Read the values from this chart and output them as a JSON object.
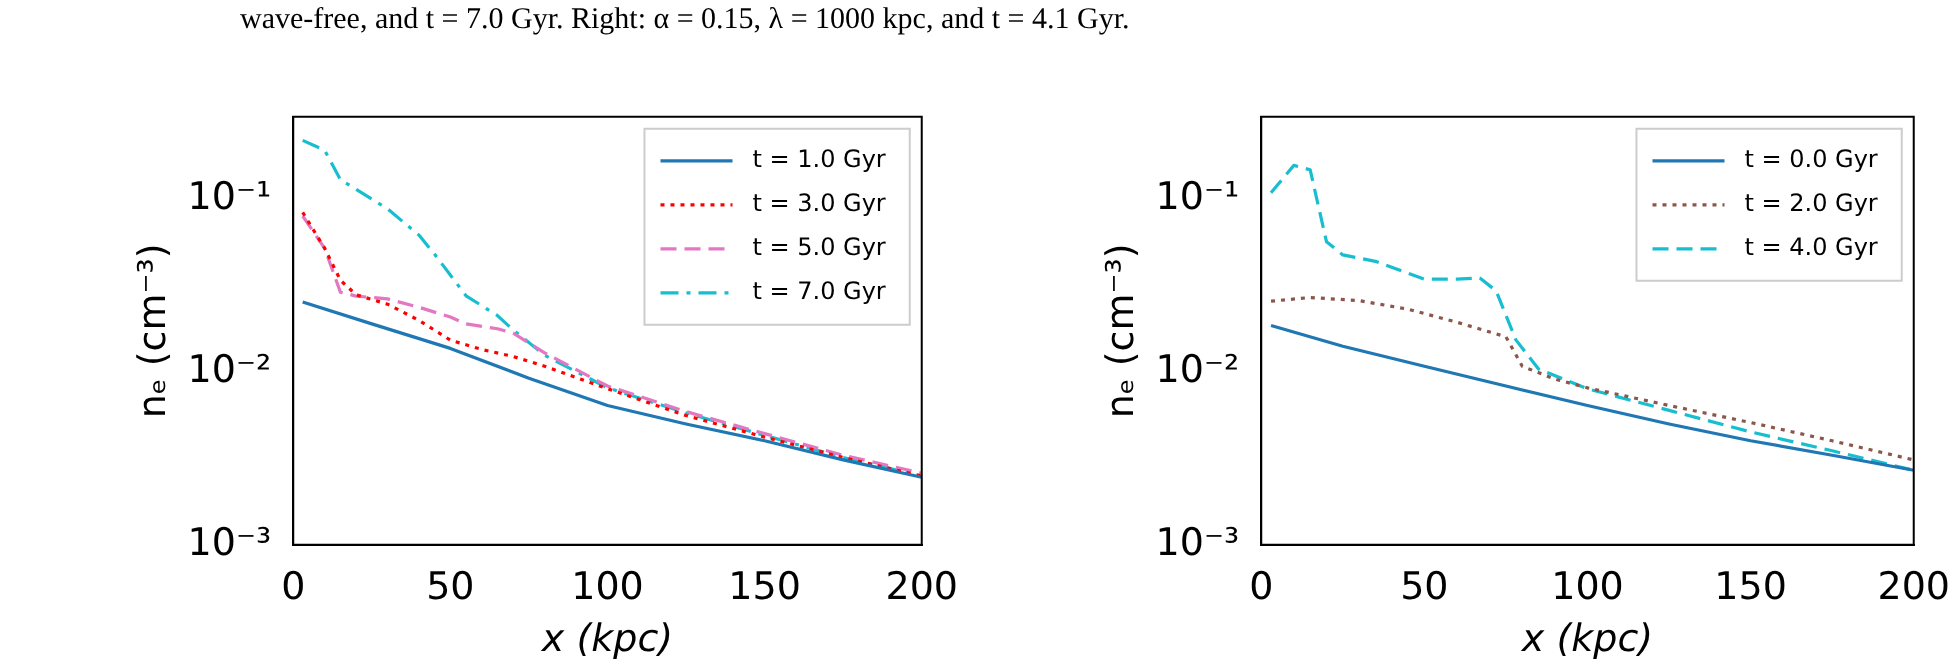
{
  "chart_data": [
    {
      "type": "line",
      "xlabel": "x (kpc)",
      "ylabel": "nₑ (cm⁻³)",
      "log": "y",
      "legend": "top right",
      "annotations": [
        "wave-free, and t = 7.0 Gyr. Right: α = 0.15, λ = 1000 kpc, and t = 4.1 Gyr."
      ],
      "xlim": [
        0,
        200
      ],
      "xticks": [
        0,
        50,
        100,
        150,
        200
      ],
      "ylim": [
        0.001,
        0.3
      ],
      "yticks": [
        {
          "value": 0.001,
          "label": "10⁻³"
        },
        {
          "value": 0.01,
          "label": "10⁻²"
        },
        {
          "value": 0.1,
          "label": "10⁻¹"
        }
      ],
      "series": [
        {
          "name": "t = 1.0 Gyr",
          "color": "#1f77b4",
          "line_style": "solid",
          "x": [
            3,
            25,
            50,
            75,
            100,
            125,
            150,
            175,
            200
          ],
          "values": [
            0.0254,
            0.019,
            0.0137,
            0.0092,
            0.0064,
            0.005,
            0.004,
            0.0031,
            0.00246
          ]
        },
        {
          "name": "t = 3.0 Gyr",
          "color": "#ff0000",
          "line_style": "dotted",
          "x": [
            3,
            10,
            15,
            20,
            30,
            40,
            50,
            60,
            70,
            80,
            100,
            125,
            150,
            175,
            200
          ],
          "values": [
            0.084,
            0.052,
            0.034,
            0.028,
            0.0247,
            0.0199,
            0.0153,
            0.0135,
            0.0123,
            0.0108,
            0.008,
            0.0056,
            0.0042,
            0.0032,
            0.0025
          ]
        },
        {
          "name": "t = 5.0 Gyr",
          "color": "#e377c2",
          "line_style": "dashed",
          "x": [
            3,
            10,
            15,
            20,
            30,
            40,
            50,
            55,
            65,
            70,
            80,
            100,
            125,
            150,
            175,
            200
          ],
          "values": [
            0.08,
            0.052,
            0.029,
            0.0275,
            0.0265,
            0.0237,
            0.0208,
            0.019,
            0.0178,
            0.0168,
            0.0129,
            0.0083,
            0.0059,
            0.0044,
            0.0033,
            0.0026
          ]
        },
        {
          "name": "t = 7.0 Gyr",
          "color": "#17becf",
          "line_style": "dashdot",
          "x": [
            3,
            10,
            15,
            20,
            30,
            40,
            45,
            55,
            65,
            70,
            80,
            100,
            125,
            150,
            175,
            200
          ],
          "values": [
            0.219,
            0.192,
            0.13,
            0.114,
            0.088,
            0.062,
            0.048,
            0.0276,
            0.0212,
            0.0175,
            0.0125,
            0.0081,
            0.0058,
            0.0043,
            0.0032,
            0.0025
          ]
        }
      ]
    },
    {
      "type": "line",
      "xlabel": "x (kpc)",
      "ylabel": "nₑ (cm⁻³)",
      "log": "y",
      "legend": "top right",
      "xlim": [
        0,
        200
      ],
      "xticks": [
        0,
        50,
        100,
        150,
        200
      ],
      "ylim": [
        0.001,
        0.3
      ],
      "yticks": [
        {
          "value": 0.001,
          "label": "10⁻³"
        },
        {
          "value": 0.01,
          "label": "10⁻²"
        },
        {
          "value": 0.1,
          "label": "10⁻¹"
        }
      ],
      "series": [
        {
          "name": "t = 0.0 Gyr",
          "color": "#1f77b4",
          "line_style": "solid",
          "x": [
            3,
            25,
            50,
            75,
            100,
            125,
            150,
            175,
            200
          ],
          "values": [
            0.0186,
            0.0141,
            0.0108,
            0.0083,
            0.0064,
            0.005,
            0.004,
            0.0033,
            0.0027
          ]
        },
        {
          "name": "t = 2.0 Gyr",
          "color": "#8c564b",
          "line_style": "dotted",
          "x": [
            3,
            15,
            30,
            45,
            60,
            75,
            80,
            90,
            100,
            125,
            150,
            175,
            200
          ],
          "values": [
            0.0257,
            0.027,
            0.0259,
            0.0231,
            0.0194,
            0.016,
            0.0108,
            0.0091,
            0.0081,
            0.0064,
            0.0051,
            0.004,
            0.0031
          ]
        },
        {
          "name": "t = 4.0 Gyr",
          "color": "#17becf",
          "line_style": "dashed",
          "x": [
            3,
            10,
            15,
            20,
            25,
            35,
            50,
            60,
            67,
            72,
            78,
            85,
            100,
            125,
            150,
            175,
            200
          ],
          "values": [
            0.109,
            0.157,
            0.148,
            0.0568,
            0.0476,
            0.0437,
            0.0345,
            0.0345,
            0.035,
            0.0295,
            0.0154,
            0.0104,
            0.008,
            0.006,
            0.0045,
            0.0035,
            0.0027
          ]
        }
      ]
    }
  ]
}
